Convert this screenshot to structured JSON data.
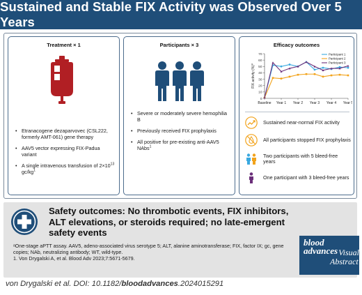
{
  "header": {
    "title": "Sustained and Stable FIX Activity was Observed Over 5 Years"
  },
  "panels": {
    "treatment": {
      "title": "Treatment × 1",
      "bullets": [
        "Etranacogene dezaparvovec (CSL222, formerly AMT-061) gene therapy",
        "AAV5 vector expressing FIX-Padua variant",
        "A single intravenous transfusion of 2×10",
        "13",
        " gc/kg",
        "1"
      ],
      "icons": {
        "bag": "blood-bag-icon"
      }
    },
    "participants": {
      "title": "Participants × 3",
      "bullets": [
        "Severe or moderately severe hemophilia B",
        "Previously received FIX prophylaxis",
        "All positive for pre-existing anti-AAV5 NAbs",
        "1"
      ],
      "icons": {
        "people": "three-people-icon"
      }
    },
    "efficacy": {
      "title": "Efficacy outcomes",
      "outcomes": [
        {
          "icon": "trend-up-icon",
          "text": "Sustained near-normal FIX activity"
        },
        {
          "icon": "no-bleed-icon",
          "text": "All participants stopped FIX prophylaxis"
        },
        {
          "icon": "two-people-icon",
          "text": "Two participants with 5 bleed-free years"
        },
        {
          "icon": "one-person-icon",
          "text": "One participant with 3 bleed-free years"
        }
      ]
    }
  },
  "chart_data": {
    "type": "line",
    "ylabel": "FIX activity (%)",
    "ylabel_sup": "a",
    "xlabel": "",
    "categories": [
      "Baseline",
      "Year 1",
      "Year 2",
      "Year 3",
      "Year 4",
      "Year 5"
    ],
    "ylim": [
      0,
      70
    ],
    "yticks": [
      0,
      10,
      20,
      30,
      40,
      50,
      60,
      70
    ],
    "grid": false,
    "legend": "top-right",
    "series": [
      {
        "name": "Participant 1",
        "color": "#3aa9e0",
        "x": [
          0,
          0.5,
          1,
          1.5,
          2,
          2.5,
          3,
          3.5,
          4,
          4.5,
          5
        ],
        "values": [
          1,
          52,
          50,
          53,
          50,
          57,
          45,
          48,
          46,
          49,
          48
        ]
      },
      {
        "name": "Participant 2",
        "color": "#f2a31b",
        "x": [
          0,
          0.5,
          1,
          1.5,
          2,
          2.5,
          3,
          3.5,
          4,
          4.5,
          5
        ],
        "values": [
          1,
          32,
          31,
          34,
          37,
          38,
          38,
          34,
          36,
          37,
          36
        ]
      },
      {
        "name": "Participant 3",
        "color": "#6b2f7a",
        "x": [
          0,
          0.5,
          1,
          1.5,
          2,
          2.5,
          3,
          3.5,
          4,
          4.5,
          5
        ],
        "values": [
          1,
          56,
          42,
          47,
          50,
          57,
          50,
          44,
          47,
          47,
          51
        ]
      }
    ]
  },
  "safety": {
    "headline": "Safety outcomes: No thrombotic events, FIX inhibitors, ALT elevations, or steroids required; no late-emergent safety events",
    "footnote_a": "ᵃOne-stage aPTT assay. AAV5, adeno-associated virus serotype 5; ALT, alanine aminotransferase; FIX, factor IX; gc, gene copies; NAb, neutralizing antibody; WT, wild-type.",
    "footnote_1": "1. Von Drygalski A, et al. Blood Adv 2023;7:5671-5679.",
    "icon": "medical-cross-icon"
  },
  "brand": {
    "line1": "blood",
    "line2": "advances",
    "line3": "Visual",
    "line4": "Abstract"
  },
  "citation": {
    "prefix": "von Drygalski et al. DOI: 10.1182/",
    "bold": "bloodadvances",
    "suffix": ".2024015291"
  },
  "colors": {
    "header_bg": "#1f4e79",
    "accent_red": "#b11f24",
    "icon_blue": "#1f4e79",
    "participant_1": "#3aa9e0",
    "participant_2": "#f2a31b",
    "participant_3": "#6b2f7a"
  }
}
